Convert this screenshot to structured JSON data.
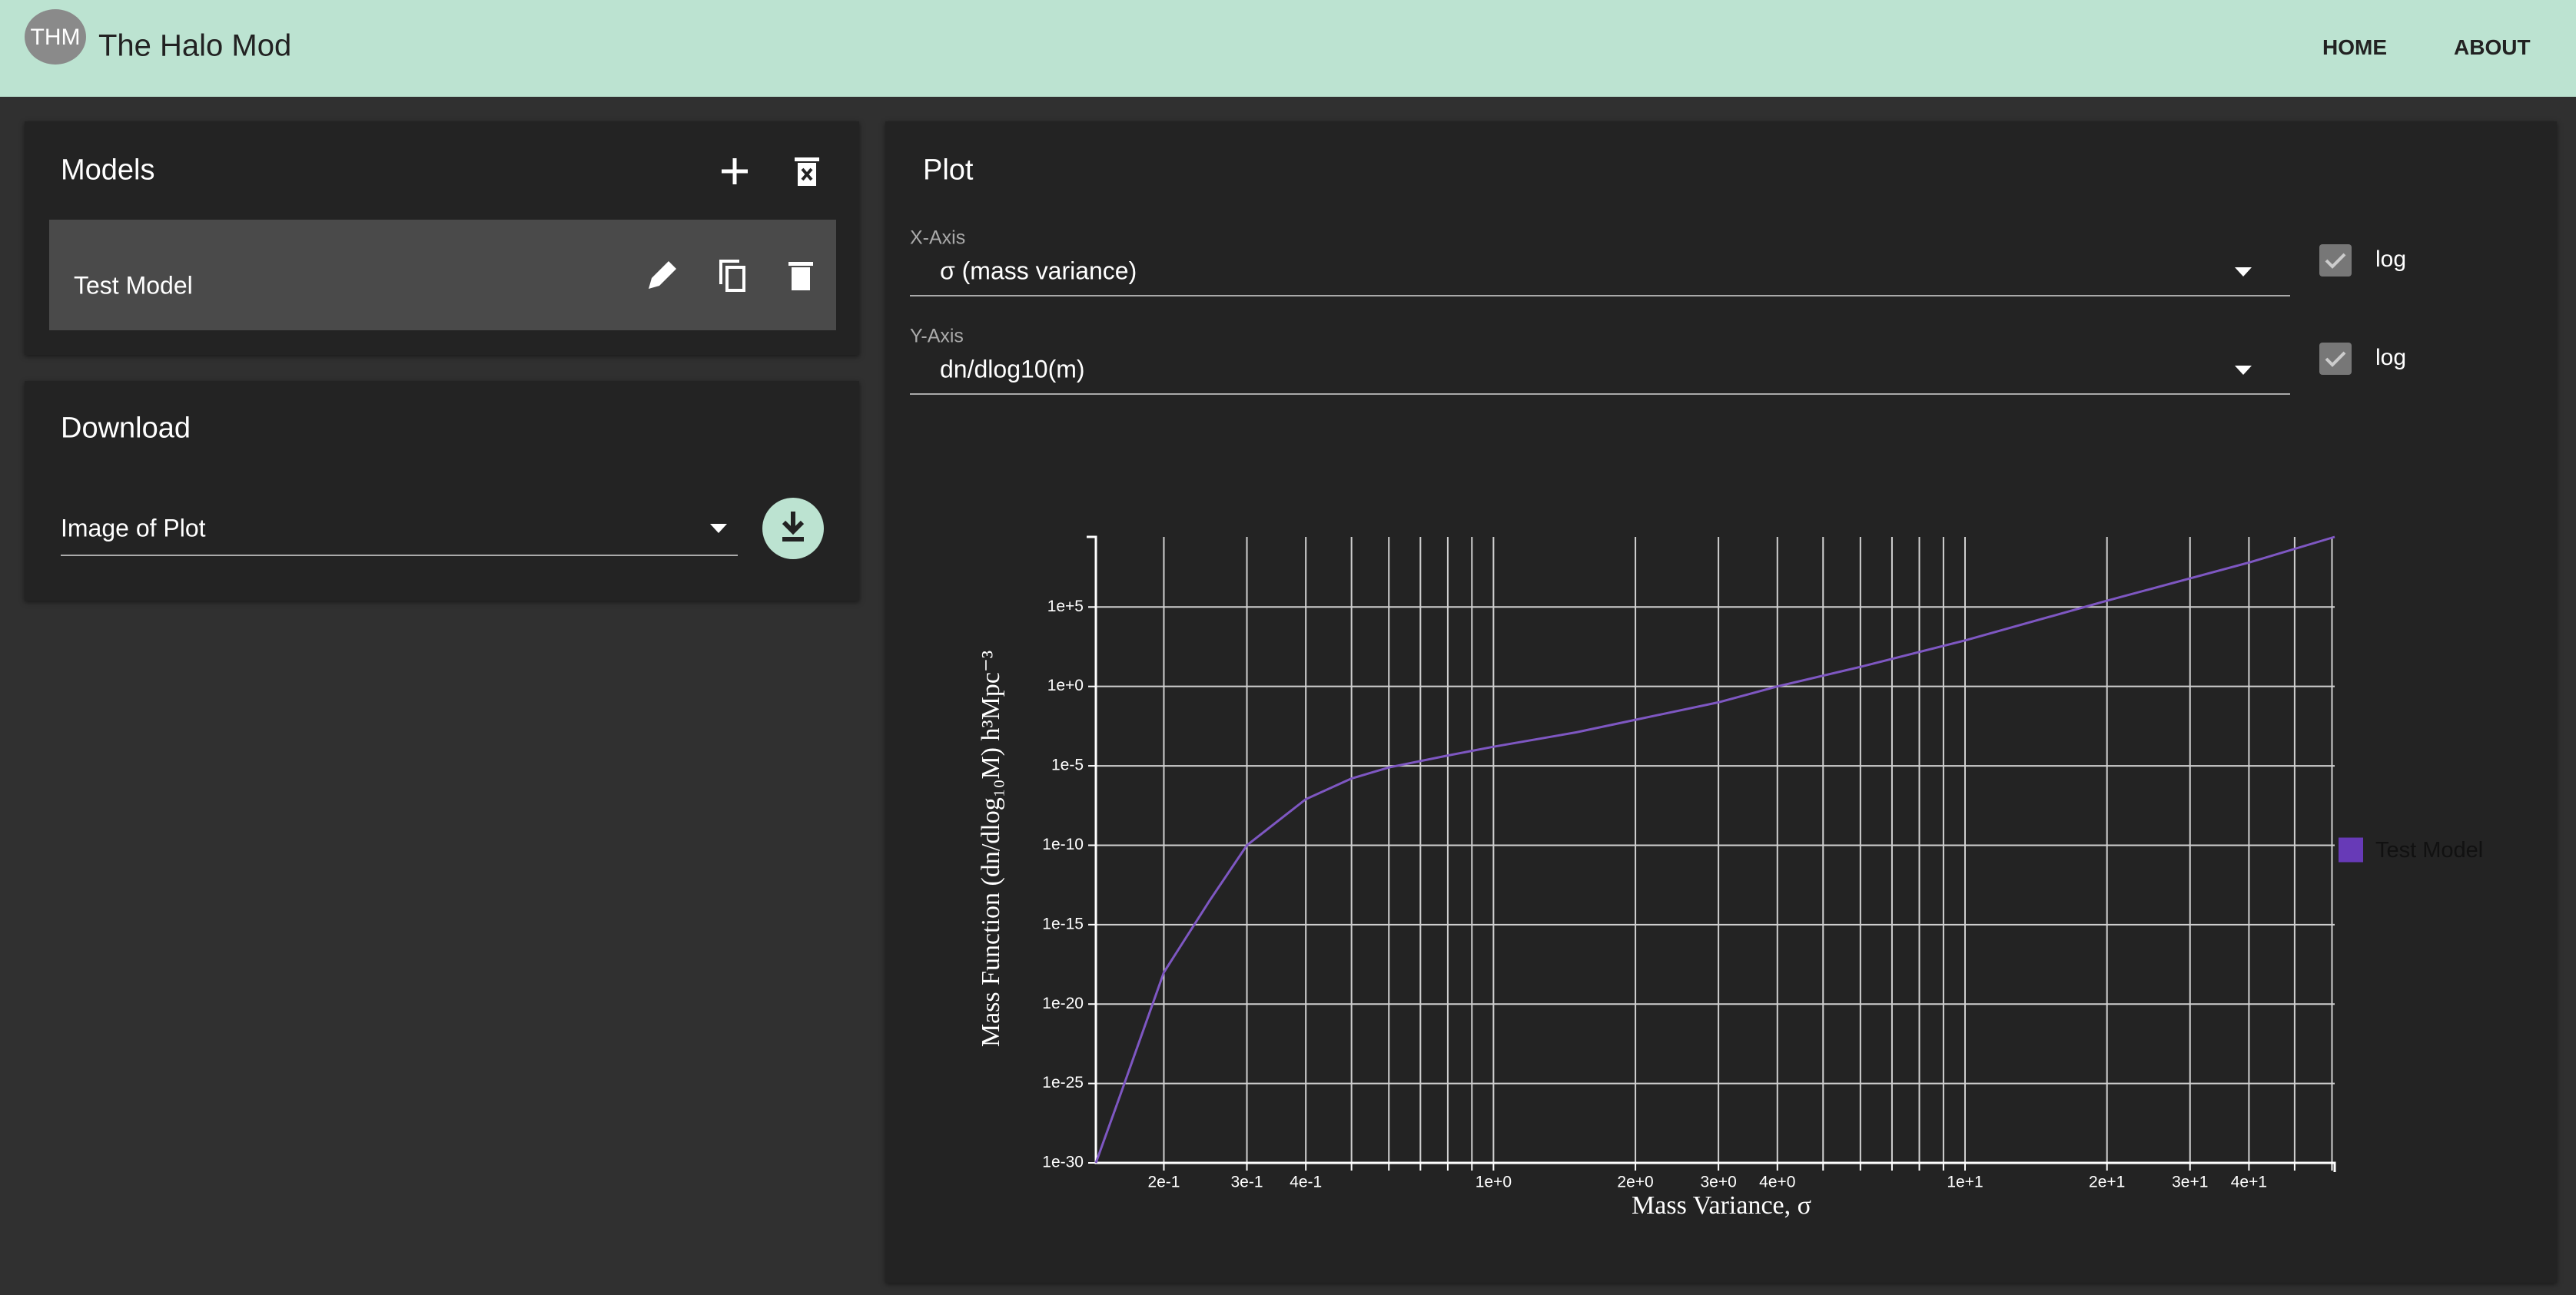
{
  "header": {
    "logo": "THM",
    "title": "The Halo Mod",
    "nav": [
      "HOME",
      "ABOUT"
    ]
  },
  "models": {
    "title": "Models",
    "items": [
      "Test Model"
    ]
  },
  "download": {
    "title": "Download",
    "select": "Image of Plot"
  },
  "plot": {
    "title": "Plot",
    "x_axis": {
      "label": "X-Axis",
      "value": "σ (mass variance)",
      "log": "log"
    },
    "y_axis": {
      "label": "Y-Axis",
      "value": "dn/dlog10(m)",
      "log": "log"
    }
  },
  "chart_data": {
    "type": "line",
    "xlabel": "Mass Variance, σ",
    "ylabel": "Mass Function (dn/dlog₁₀M) h³Mpc⁻³",
    "x": [
      0.1435,
      0.16,
      0.2,
      0.25,
      0.3,
      0.4,
      0.5,
      0.6,
      0.8,
      1,
      1.5,
      2,
      3,
      4,
      6,
      10,
      20,
      40,
      60.8
    ],
    "series": [
      {
        "name": "Test Model",
        "color": "#7e57c2",
        "legend_color": "#673ab7",
        "values": [
          1e-30,
          7.9e-27,
          1e-18,
          3.2e-14,
          1e-10,
          7.9e-08,
          1.6e-06,
          7.9e-06,
          4.5e-05,
          0.00016,
          0.0013,
          0.0079,
          0.1,
          1,
          17,
          790,
          250000.0,
          63000000.0,
          2600000000.0
        ]
      }
    ],
    "xlog": true,
    "ylog": true,
    "grid": true,
    "legend": "right",
    "xlim": [
      0.1435,
      60.8
    ],
    "ylim": [
      1e-30,
      2600000000.0
    ],
    "xticks": [
      {
        "value": 0.2,
        "label": "2e-1"
      },
      {
        "value": 0.3,
        "label": "3e-1"
      },
      {
        "value": 0.4,
        "label": "4e-1"
      },
      {
        "value": 1,
        "label": "1e+0"
      },
      {
        "value": 2,
        "label": "2e+0"
      },
      {
        "value": 3,
        "label": "3e+0"
      },
      {
        "value": 4,
        "label": "4e+0"
      },
      {
        "value": 10,
        "label": "1e+1"
      },
      {
        "value": 20,
        "label": "2e+1"
      },
      {
        "value": 30,
        "label": "3e+1"
      },
      {
        "value": 40,
        "label": "4e+1"
      }
    ],
    "xminor": [
      0.5,
      0.6,
      0.7,
      0.8,
      0.9,
      5,
      6,
      7,
      8,
      9,
      50,
      60
    ],
    "yticks": [
      {
        "value": 1e-30,
        "label": "1e-30"
      },
      {
        "value": 1e-25,
        "label": "1e-25"
      },
      {
        "value": 1e-20,
        "label": "1e-20"
      },
      {
        "value": 1e-15,
        "label": "1e-15"
      },
      {
        "value": 1e-10,
        "label": "1e-10"
      },
      {
        "value": 1e-05,
        "label": "1e-5"
      },
      {
        "value": 1,
        "label": "1e+0"
      },
      {
        "value": 100000.0,
        "label": "1e+5"
      }
    ]
  }
}
